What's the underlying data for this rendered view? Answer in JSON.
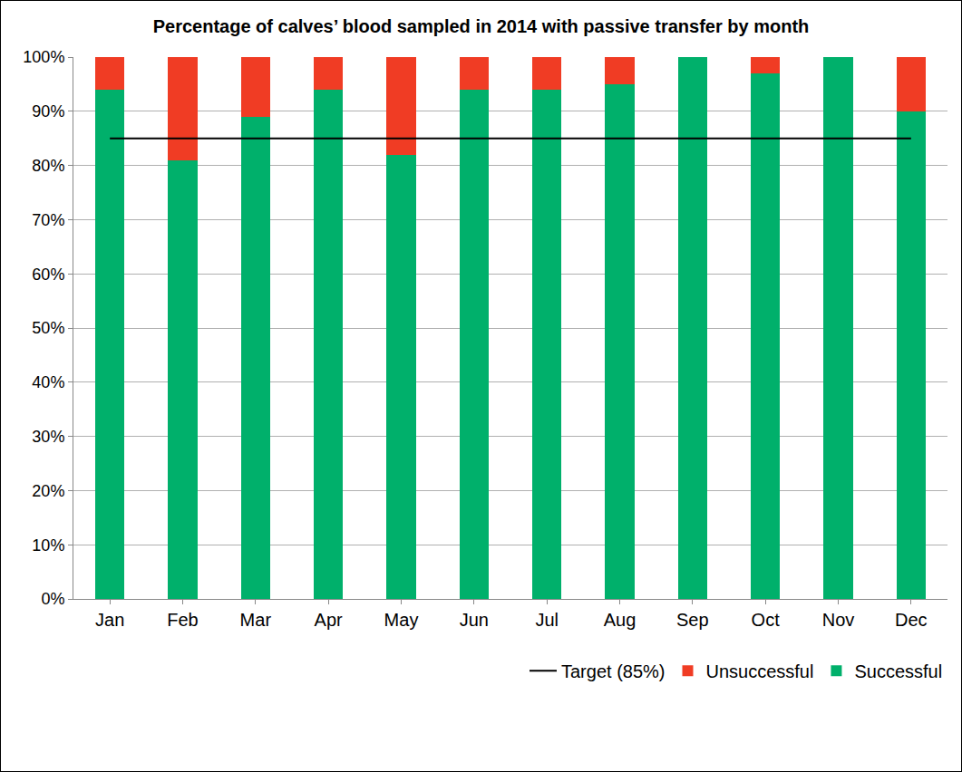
{
  "chart_data": {
    "type": "bar",
    "title": "Percentage of calves’ blood sampled in 2014 with passive transfer by month",
    "categories": [
      "Jan",
      "Feb",
      "Mar",
      "Apr",
      "May",
      "Jun",
      "Jul",
      "Aug",
      "Sep",
      "Oct",
      "Nov",
      "Dec"
    ],
    "series": [
      {
        "name": "Successful",
        "color": "#00b06b",
        "values": [
          94,
          81,
          89,
          94,
          82,
          94,
          94,
          95,
          100,
          97,
          100,
          90
        ]
      },
      {
        "name": "Unsuccessful",
        "color": "#f03c24",
        "values": [
          6,
          19,
          11,
          6,
          18,
          6,
          6,
          5,
          0,
          3,
          0,
          10
        ]
      },
      {
        "name": "Target (85%)",
        "type": "line",
        "color": "#000000",
        "values": [
          85,
          85,
          85,
          85,
          85,
          85,
          85,
          85,
          85,
          85,
          85,
          85
        ]
      }
    ],
    "stacked": true,
    "ylim": [
      0,
      100
    ],
    "yticks": [
      {
        "value": 0,
        "label": "0%"
      },
      {
        "value": 10,
        "label": "10%"
      },
      {
        "value": 20,
        "label": "20%"
      },
      {
        "value": 30,
        "label": "30%"
      },
      {
        "value": 40,
        "label": "40%"
      },
      {
        "value": 50,
        "label": "50%"
      },
      {
        "value": 60,
        "label": "60%"
      },
      {
        "value": 70,
        "label": "70%"
      },
      {
        "value": 80,
        "label": "80%"
      },
      {
        "value": 90,
        "label": "90%"
      },
      {
        "value": 100,
        "label": "100%"
      }
    ],
    "grid": true,
    "legend": "bottom"
  }
}
